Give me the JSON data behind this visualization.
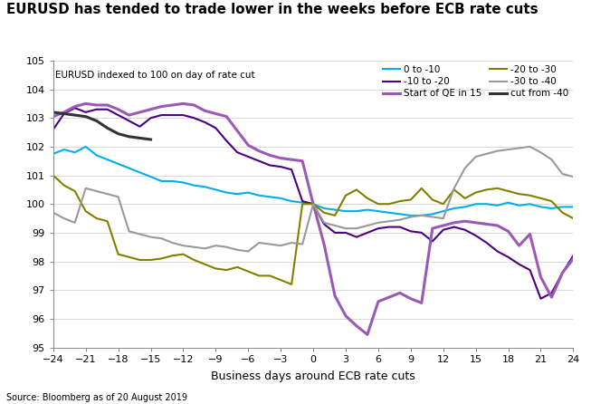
{
  "title": "EURUSD has tended to trade lower in the weeks before ECB rate cuts",
  "subtitle": "EURUSD indexed to 100 on day of rate cut",
  "xlabel": "Business days around ECB rate cuts",
  "source": "Source: Bloomberg as of 20 August 2019",
  "ylim": [
    95,
    105
  ],
  "xlim": [
    -24,
    24
  ],
  "xticks": [
    -24,
    -21,
    -18,
    -15,
    -12,
    -9,
    -6,
    -3,
    0,
    3,
    6,
    9,
    12,
    15,
    18,
    21,
    24
  ],
  "yticks": [
    95,
    96,
    97,
    98,
    99,
    100,
    101,
    102,
    103,
    104,
    105
  ],
  "series": [
    {
      "key": "0_to_-10",
      "label": "0 to -10",
      "color": "#00AEEF",
      "linewidth": 1.5,
      "x": [
        -24,
        -23,
        -22,
        -21,
        -20,
        -19,
        -18,
        -17,
        -16,
        -15,
        -14,
        -13,
        -12,
        -11,
        -10,
        -9,
        -8,
        -7,
        -6,
        -5,
        -4,
        -3,
        -2,
        -1,
        0,
        1,
        2,
        3,
        4,
        5,
        6,
        7,
        8,
        9,
        10,
        11,
        12,
        13,
        14,
        15,
        16,
        17,
        18,
        19,
        20,
        21,
        22,
        23,
        24
      ],
      "y": [
        101.75,
        101.9,
        101.8,
        102.0,
        101.7,
        101.55,
        101.4,
        101.25,
        101.1,
        100.95,
        100.8,
        100.8,
        100.75,
        100.65,
        100.6,
        100.5,
        100.4,
        100.35,
        100.4,
        100.3,
        100.25,
        100.2,
        100.1,
        100.05,
        100.0,
        99.85,
        99.8,
        99.75,
        99.75,
        99.8,
        99.75,
        99.7,
        99.65,
        99.6,
        99.6,
        99.65,
        99.75,
        99.85,
        99.9,
        100.0,
        100.0,
        99.95,
        100.05,
        99.95,
        100.0,
        99.9,
        99.85,
        99.9,
        99.9
      ]
    },
    {
      "key": "-10_to_-20",
      "label": "-10 to -20",
      "color": "#4B0082",
      "linewidth": 1.5,
      "x": [
        -24,
        -23,
        -22,
        -21,
        -20,
        -19,
        -18,
        -17,
        -16,
        -15,
        -14,
        -13,
        -12,
        -11,
        -10,
        -9,
        -8,
        -7,
        -6,
        -5,
        -4,
        -3,
        -2,
        -1,
        0,
        1,
        2,
        3,
        4,
        5,
        6,
        7,
        8,
        9,
        10,
        11,
        12,
        13,
        14,
        15,
        16,
        17,
        18,
        19,
        20,
        21,
        22,
        23,
        24
      ],
      "y": [
        102.6,
        103.15,
        103.35,
        103.2,
        103.3,
        103.3,
        103.1,
        102.9,
        102.7,
        103.0,
        103.1,
        103.1,
        103.1,
        103.0,
        102.85,
        102.65,
        102.2,
        101.8,
        101.65,
        101.5,
        101.35,
        101.3,
        101.2,
        100.1,
        100.0,
        99.3,
        99.0,
        99.0,
        98.85,
        99.0,
        99.15,
        99.2,
        99.2,
        99.05,
        99.0,
        98.7,
        99.1,
        99.2,
        99.1,
        98.9,
        98.65,
        98.35,
        98.15,
        97.9,
        97.7,
        96.7,
        96.9,
        97.6,
        98.2
      ]
    },
    {
      "key": "QE_15",
      "label": "Start of QE in 15",
      "color": "#9B59B6",
      "linewidth": 2.2,
      "x": [
        -24,
        -23,
        -22,
        -21,
        -20,
        -19,
        -18,
        -17,
        -16,
        -15,
        -14,
        -13,
        -12,
        -11,
        -10,
        -9,
        -8,
        -7,
        -6,
        -5,
        -4,
        -3,
        -2,
        -1,
        0,
        1,
        2,
        3,
        4,
        5,
        6,
        7,
        8,
        9,
        10,
        11,
        12,
        13,
        14,
        15,
        16,
        17,
        18,
        19,
        20,
        21,
        22,
        23,
        24
      ],
      "y": [
        103.05,
        103.2,
        103.4,
        103.5,
        103.45,
        103.45,
        103.3,
        103.1,
        103.2,
        103.3,
        103.4,
        103.45,
        103.5,
        103.45,
        103.25,
        103.15,
        103.05,
        102.55,
        102.05,
        101.85,
        101.7,
        101.6,
        101.55,
        101.5,
        100.0,
        98.6,
        96.8,
        96.1,
        95.75,
        95.45,
        96.6,
        96.75,
        96.9,
        96.7,
        96.55,
        99.15,
        99.25,
        99.35,
        99.4,
        99.35,
        99.3,
        99.25,
        99.05,
        98.55,
        98.95,
        97.45,
        96.75,
        97.6,
        98.1
      ]
    },
    {
      "key": "-20_to_-30",
      "label": "-20 to -30",
      "color": "#808000",
      "linewidth": 1.5,
      "x": [
        -24,
        -23,
        -22,
        -21,
        -20,
        -19,
        -18,
        -17,
        -16,
        -15,
        -14,
        -13,
        -12,
        -11,
        -10,
        -9,
        -8,
        -7,
        -6,
        -5,
        -4,
        -3,
        -2,
        -1,
        0,
        1,
        2,
        3,
        4,
        5,
        6,
        7,
        8,
        9,
        10,
        11,
        12,
        13,
        14,
        15,
        16,
        17,
        18,
        19,
        20,
        21,
        22,
        23,
        24
      ],
      "y": [
        101.0,
        100.65,
        100.45,
        99.75,
        99.5,
        99.4,
        98.25,
        98.15,
        98.05,
        98.05,
        98.1,
        98.2,
        98.25,
        98.05,
        97.9,
        97.75,
        97.7,
        97.8,
        97.65,
        97.5,
        97.5,
        97.35,
        97.2,
        100.0,
        100.0,
        99.7,
        99.6,
        100.3,
        100.5,
        100.2,
        100.0,
        100.0,
        100.1,
        100.15,
        100.55,
        100.15,
        100.0,
        100.5,
        100.2,
        100.4,
        100.5,
        100.55,
        100.45,
        100.35,
        100.3,
        100.2,
        100.1,
        99.7,
        99.5
      ]
    },
    {
      "key": "-30_to_-40",
      "label": "-30 to -40",
      "color": "#999999",
      "linewidth": 1.5,
      "x": [
        -24,
        -23,
        -22,
        -21,
        -20,
        -19,
        -18,
        -17,
        -16,
        -15,
        -14,
        -13,
        -12,
        -11,
        -10,
        -9,
        -8,
        -7,
        -6,
        -5,
        -4,
        -3,
        -2,
        -1,
        0,
        1,
        2,
        3,
        4,
        5,
        6,
        7,
        8,
        9,
        10,
        11,
        12,
        13,
        14,
        15,
        16,
        17,
        18,
        19,
        20,
        21,
        22,
        23,
        24
      ],
      "y": [
        99.7,
        99.5,
        99.35,
        100.55,
        100.45,
        100.35,
        100.25,
        99.05,
        98.95,
        98.85,
        98.8,
        98.65,
        98.55,
        98.5,
        98.45,
        98.55,
        98.5,
        98.4,
        98.35,
        98.65,
        98.6,
        98.55,
        98.65,
        98.6,
        100.0,
        99.35,
        99.25,
        99.15,
        99.15,
        99.25,
        99.35,
        99.4,
        99.45,
        99.55,
        99.6,
        99.55,
        99.5,
        100.55,
        101.25,
        101.65,
        101.75,
        101.85,
        101.9,
        101.95,
        102.0,
        101.8,
        101.55,
        101.05,
        100.95
      ]
    },
    {
      "key": "cut_from_-40",
      "label": "cut from -40",
      "color": "#333333",
      "linewidth": 2.2,
      "x": [
        -24,
        -23,
        -22,
        -21,
        -20,
        -19,
        -18,
        -17,
        -16,
        -15
      ],
      "y": [
        103.2,
        103.15,
        103.1,
        103.05,
        102.9,
        102.65,
        102.45,
        102.35,
        102.3,
        102.25
      ]
    }
  ]
}
